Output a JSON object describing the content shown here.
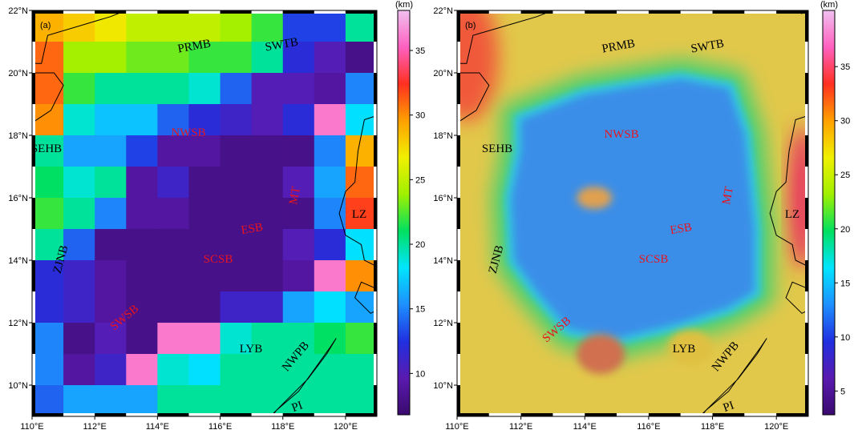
{
  "panels": [
    {
      "label": "(a)",
      "xlim": [
        110,
        121
      ],
      "ylim": [
        9,
        22
      ],
      "xticks": [
        {
          "value": 110,
          "label": "110°E"
        },
        {
          "value": 112,
          "label": "112°E"
        },
        {
          "value": 114,
          "label": "114°E"
        },
        {
          "value": 116,
          "label": "116°E"
        },
        {
          "value": 118,
          "label": "118°E"
        },
        {
          "value": 120,
          "label": "120°E"
        }
      ],
      "yticks": [
        {
          "value": 10,
          "label": "10°N"
        },
        {
          "value": 12,
          "label": "12°N"
        },
        {
          "value": 14,
          "label": "14°N"
        },
        {
          "value": 16,
          "label": "16°N"
        },
        {
          "value": 18,
          "label": "18°N"
        },
        {
          "value": 20,
          "label": "20°N"
        },
        {
          "value": 22,
          "label": "22°N"
        }
      ],
      "colorbar": {
        "unit": "(km)",
        "lim": [
          6.8,
          38.1
        ],
        "ticks": [
          10,
          15,
          20,
          25,
          30,
          35
        ],
        "colors": [
          "#3a0a6e",
          "#5a1ab0",
          "#2030e0",
          "#1e90ff",
          "#00e5ff",
          "#00e060",
          "#a0f000",
          "#f0f000",
          "#ffa000",
          "#ff3020",
          "#ff60c0",
          "#f0c0f0"
        ]
      },
      "grid": {
        "values": [
          [
            29,
            28,
            27,
            25,
            25,
            25,
            24,
            22,
            13,
            13,
            20
          ],
          [
            31,
            24,
            24,
            23,
            23,
            22,
            22,
            20,
            12,
            10,
            8
          ],
          [
            31,
            22,
            20,
            20,
            20,
            19,
            14,
            10,
            10,
            9,
            15
          ],
          [
            30,
            19,
            17,
            17,
            14,
            12,
            11,
            10,
            12,
            36,
            18
          ],
          [
            20,
            16,
            16,
            13,
            9,
            9,
            8,
            8,
            8,
            15,
            29
          ],
          [
            21,
            19,
            20,
            9,
            11,
            8,
            8,
            8,
            10,
            16,
            31
          ],
          [
            22,
            20,
            15,
            9,
            9,
            8,
            8,
            8,
            8,
            15,
            32
          ],
          [
            20,
            14,
            8,
            8,
            8,
            8,
            8,
            8,
            10,
            12,
            18
          ],
          [
            12,
            11,
            9,
            8,
            8,
            8,
            8,
            8,
            9,
            36,
            30
          ],
          [
            12,
            11,
            9,
            8,
            8,
            8,
            11,
            11,
            16,
            18,
            16
          ],
          [
            15,
            8,
            10,
            8,
            36,
            36,
            19,
            20,
            20,
            21,
            22
          ],
          [
            15,
            9,
            11,
            36,
            19,
            18,
            20,
            20,
            20,
            20,
            20
          ],
          [
            14,
            16,
            16,
            16,
            20,
            20,
            20,
            20,
            20,
            20,
            20
          ]
        ]
      },
      "regions": [
        {
          "text": "PRMB",
          "color": "#000000"
        },
        {
          "text": "SWTB",
          "color": "#000000"
        },
        {
          "text": "NWSB",
          "color": "#e8141e"
        },
        {
          "text": "SEHB",
          "color": "#000000"
        },
        {
          "text": "MT",
          "color": "#e8141e"
        },
        {
          "text": "ESB",
          "color": "#e8141e"
        },
        {
          "text": "LZ",
          "color": "#000000"
        },
        {
          "text": "SCSB",
          "color": "#e8141e"
        },
        {
          "text": "ZJNB",
          "color": "#000000"
        },
        {
          "text": "SWSB",
          "color": "#e8141e"
        },
        {
          "text": "LYB",
          "color": "#000000"
        },
        {
          "text": "NWPB",
          "color": "#000000"
        },
        {
          "text": "PI",
          "color": "#000000"
        }
      ]
    },
    {
      "label": "(b)",
      "xlim": [
        110,
        121
      ],
      "ylim": [
        9,
        22
      ],
      "xticks": [
        {
          "value": 110,
          "label": "110°E"
        },
        {
          "value": 112,
          "label": "112°E"
        },
        {
          "value": 114,
          "label": "114°E"
        },
        {
          "value": 116,
          "label": "116°E"
        },
        {
          "value": 118,
          "label": "118°E"
        },
        {
          "value": 120,
          "label": "120°E"
        }
      ],
      "yticks": [
        {
          "value": 10,
          "label": "10°N"
        },
        {
          "value": 12,
          "label": "12°N"
        },
        {
          "value": 14,
          "label": "14°N"
        },
        {
          "value": 16,
          "label": "16°N"
        },
        {
          "value": 18,
          "label": "18°N"
        },
        {
          "value": 20,
          "label": "20°N"
        },
        {
          "value": 22,
          "label": "22°N"
        }
      ],
      "colorbar": {
        "unit": "(km)",
        "lim": [
          2.8,
          40.2
        ],
        "ticks": [
          5,
          10,
          15,
          20,
          25,
          30,
          35
        ],
        "colors": [
          "#3a0a6e",
          "#5a1ab0",
          "#2030e0",
          "#1e90ff",
          "#00e5ff",
          "#00e060",
          "#a0f000",
          "#f0f000",
          "#ffa000",
          "#ff3020",
          "#ff60c0",
          "#f0c0f0"
        ]
      },
      "regions": [
        {
          "text": "PRMB",
          "color": "#000000"
        },
        {
          "text": "SWTB",
          "color": "#000000"
        },
        {
          "text": "NWSB",
          "color": "#e8141e"
        },
        {
          "text": "SEHB",
          "color": "#000000"
        },
        {
          "text": "MT",
          "color": "#e8141e"
        },
        {
          "text": "ESB",
          "color": "#e8141e"
        },
        {
          "text": "LZ",
          "color": "#000000"
        },
        {
          "text": "SCSB",
          "color": "#e8141e"
        },
        {
          "text": "ZJNB",
          "color": "#000000"
        },
        {
          "text": "SWSB",
          "color": "#e8141e"
        },
        {
          "text": "LYB",
          "color": "#000000"
        },
        {
          "text": "NWPB",
          "color": "#000000"
        },
        {
          "text": "PI",
          "color": "#000000"
        }
      ]
    }
  ]
}
